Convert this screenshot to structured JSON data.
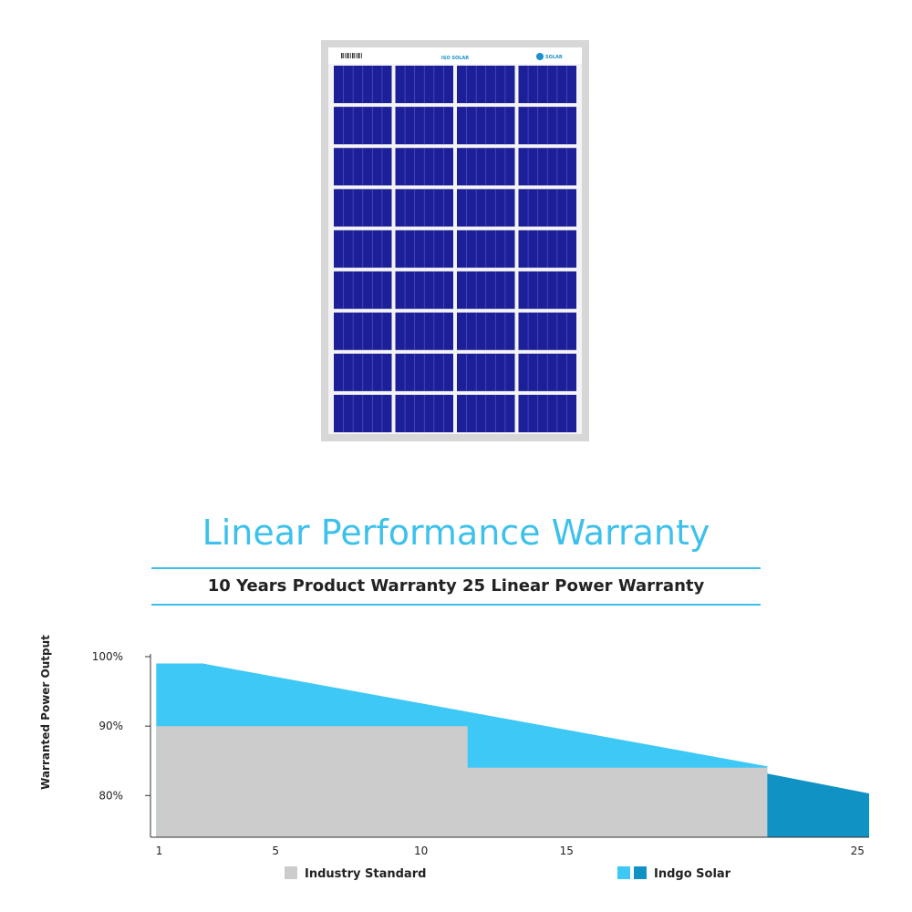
{
  "product": {
    "barcode_text": "||||||||||",
    "label_text": "ISO SOLAR",
    "brand_text": "SOLAR"
  },
  "heading": {
    "title": "Linear Performance Warranty",
    "subtitle": "10 Years Product Warranty  25 Linear Power Warranty"
  },
  "colors": {
    "title": "#3dc1ec",
    "industry": "#cccccc",
    "indgo_light": "#3ec8f6",
    "indgo_dark": "#1192c4",
    "panel_cell": "#1c1f97",
    "panel_frame": "#d7d7d7"
  },
  "chart_data": {
    "type": "area",
    "ylabel": "Warranted Power Output",
    "xlabel": "",
    "x_ticks": [
      1,
      5,
      10,
      15,
      25
    ],
    "y_ticks": [
      {
        "value": 100,
        "label": "100%"
      },
      {
        "value": 90,
        "label": "90%"
      },
      {
        "value": 80,
        "label": "80%"
      }
    ],
    "xlim": [
      0.7,
      25.4
    ],
    "ylim": [
      74,
      100
    ],
    "series": [
      {
        "name": "Industry Standard",
        "kind": "step",
        "points": [
          [
            0.9,
            90
          ],
          [
            11.6,
            90
          ],
          [
            11.6,
            84
          ],
          [
            21.9,
            84
          ],
          [
            21.9,
            74
          ]
        ]
      },
      {
        "name": "Indgo Solar",
        "kind": "band",
        "upper": [
          [
            0.9,
            99
          ],
          [
            2.5,
            99
          ],
          [
            25.4,
            80.3
          ]
        ],
        "lower": [
          [
            0.9,
            99
          ],
          [
            2.5,
            99
          ],
          [
            21.9,
            84.2
          ]
        ]
      }
    ],
    "legend": [
      {
        "name": "Industry Standard",
        "swatches": [
          "industry"
        ]
      },
      {
        "name": "Indgo Solar",
        "swatches": [
          "indgo_light",
          "indgo_dark"
        ]
      }
    ],
    "legend_position": "bottom"
  }
}
